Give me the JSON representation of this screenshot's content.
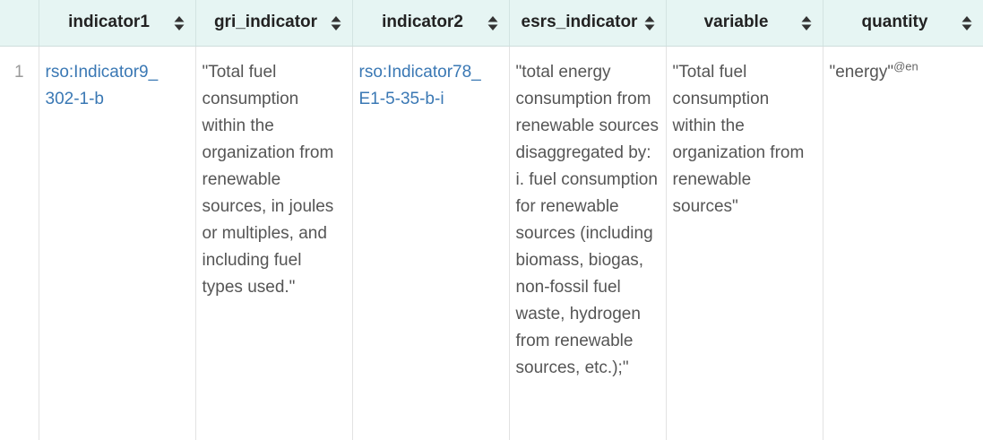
{
  "table": {
    "row_number_header": "",
    "columns": [
      {
        "label": "indicator1"
      },
      {
        "label": "gri_indicator"
      },
      {
        "label": "indicator2"
      },
      {
        "label": "esrs_indicator"
      },
      {
        "label": "variable"
      },
      {
        "label": "quantity"
      }
    ],
    "rows": [
      {
        "num": "1",
        "indicator1": "rso:Indicator9_ 302-1-b",
        "gri_indicator": "\"Total fuel consumption within the organization from renewable sources, in joules or multiples, and including fuel types used.\"",
        "indicator2": "rso:Indicator78_ E1-5-35-b-i",
        "esrs_indicator": "\"total energy consumption from renewable sources disaggregated by: i. fuel consumption for renewable sources (including biomass, biogas, non-fossil fuel waste, hydrogen from renewable sources, etc.);\"",
        "variable": "\"Total fuel consumption within the organization from renewable sources\"",
        "quantity": "\"energy\"",
        "quantity_lang": "@en"
      }
    ]
  },
  "colors": {
    "header_bg": "#e6f5f3",
    "link": "#3a78b4",
    "text": "#555555",
    "row_number": "#9a9a9a"
  },
  "icons": {
    "sort": "sort-up-down-icon"
  }
}
